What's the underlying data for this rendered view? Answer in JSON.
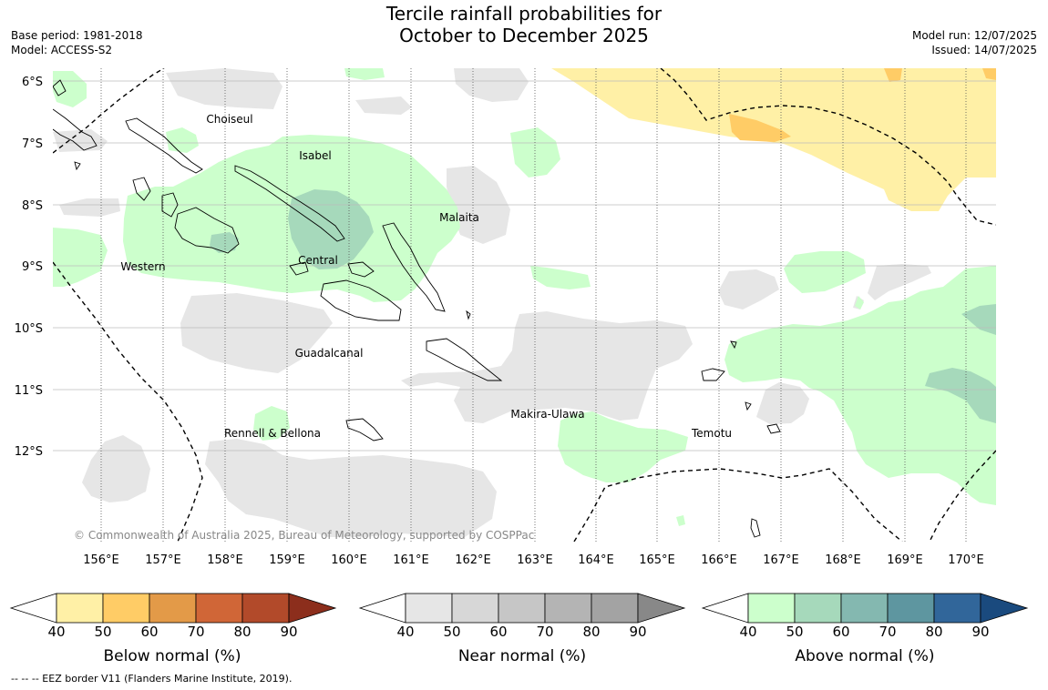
{
  "header": {
    "title_line1": "Tercile rainfall probabilities for",
    "title_line2": "October to December 2025",
    "base_period": "Base period: 1981-2018",
    "model": "Model: ACCESS-S2",
    "model_run": "Model run: 12/07/2025",
    "issued": "Issued: 14/07/2025"
  },
  "map": {
    "lat_labels": [
      "6°S",
      "7°S",
      "8°S",
      "9°S",
      "10°S",
      "11°S",
      "12°S"
    ],
    "lon_labels": [
      "156°E",
      "157°E",
      "158°E",
      "159°E",
      "160°E",
      "161°E",
      "162°E",
      "163°E",
      "164°E",
      "165°E",
      "166°E",
      "167°E",
      "168°E",
      "169°E",
      "170°E"
    ],
    "region_labels": [
      "Choiseul",
      "Isabel",
      "Malaita",
      "Western",
      "Central",
      "Guadalcanal",
      "Makira-Ulawa",
      "Rennell & Bellona",
      "Temotu"
    ],
    "copyright": "© Commonwealth of Australia 2025, Bureau of Meteorology, supported by COSPPac"
  },
  "legend": {
    "ticks": [
      "40",
      "50",
      "60",
      "70",
      "80",
      "90"
    ],
    "below": {
      "title": "Below normal (%)",
      "colors": [
        "#fff0a6",
        "#ffcc66",
        "#e39a48",
        "#d06637",
        "#b24a2a",
        "#8c2e1c"
      ]
    },
    "near": {
      "title": "Near normal (%)",
      "colors": [
        "#e6e6e6",
        "#d7d7d7",
        "#c6c6c6",
        "#b4b4b4",
        "#a3a3a3",
        "#888888"
      ]
    },
    "above": {
      "title": "Above normal (%)",
      "colors": [
        "#ccffcc",
        "#a6d9bb",
        "#84b8b0",
        "#5e96a0",
        "#31669a",
        "#1a4a7e"
      ]
    }
  },
  "footer": "--  --  -- EEZ border V11 (Flanders Marine Institute, 2019)."
}
